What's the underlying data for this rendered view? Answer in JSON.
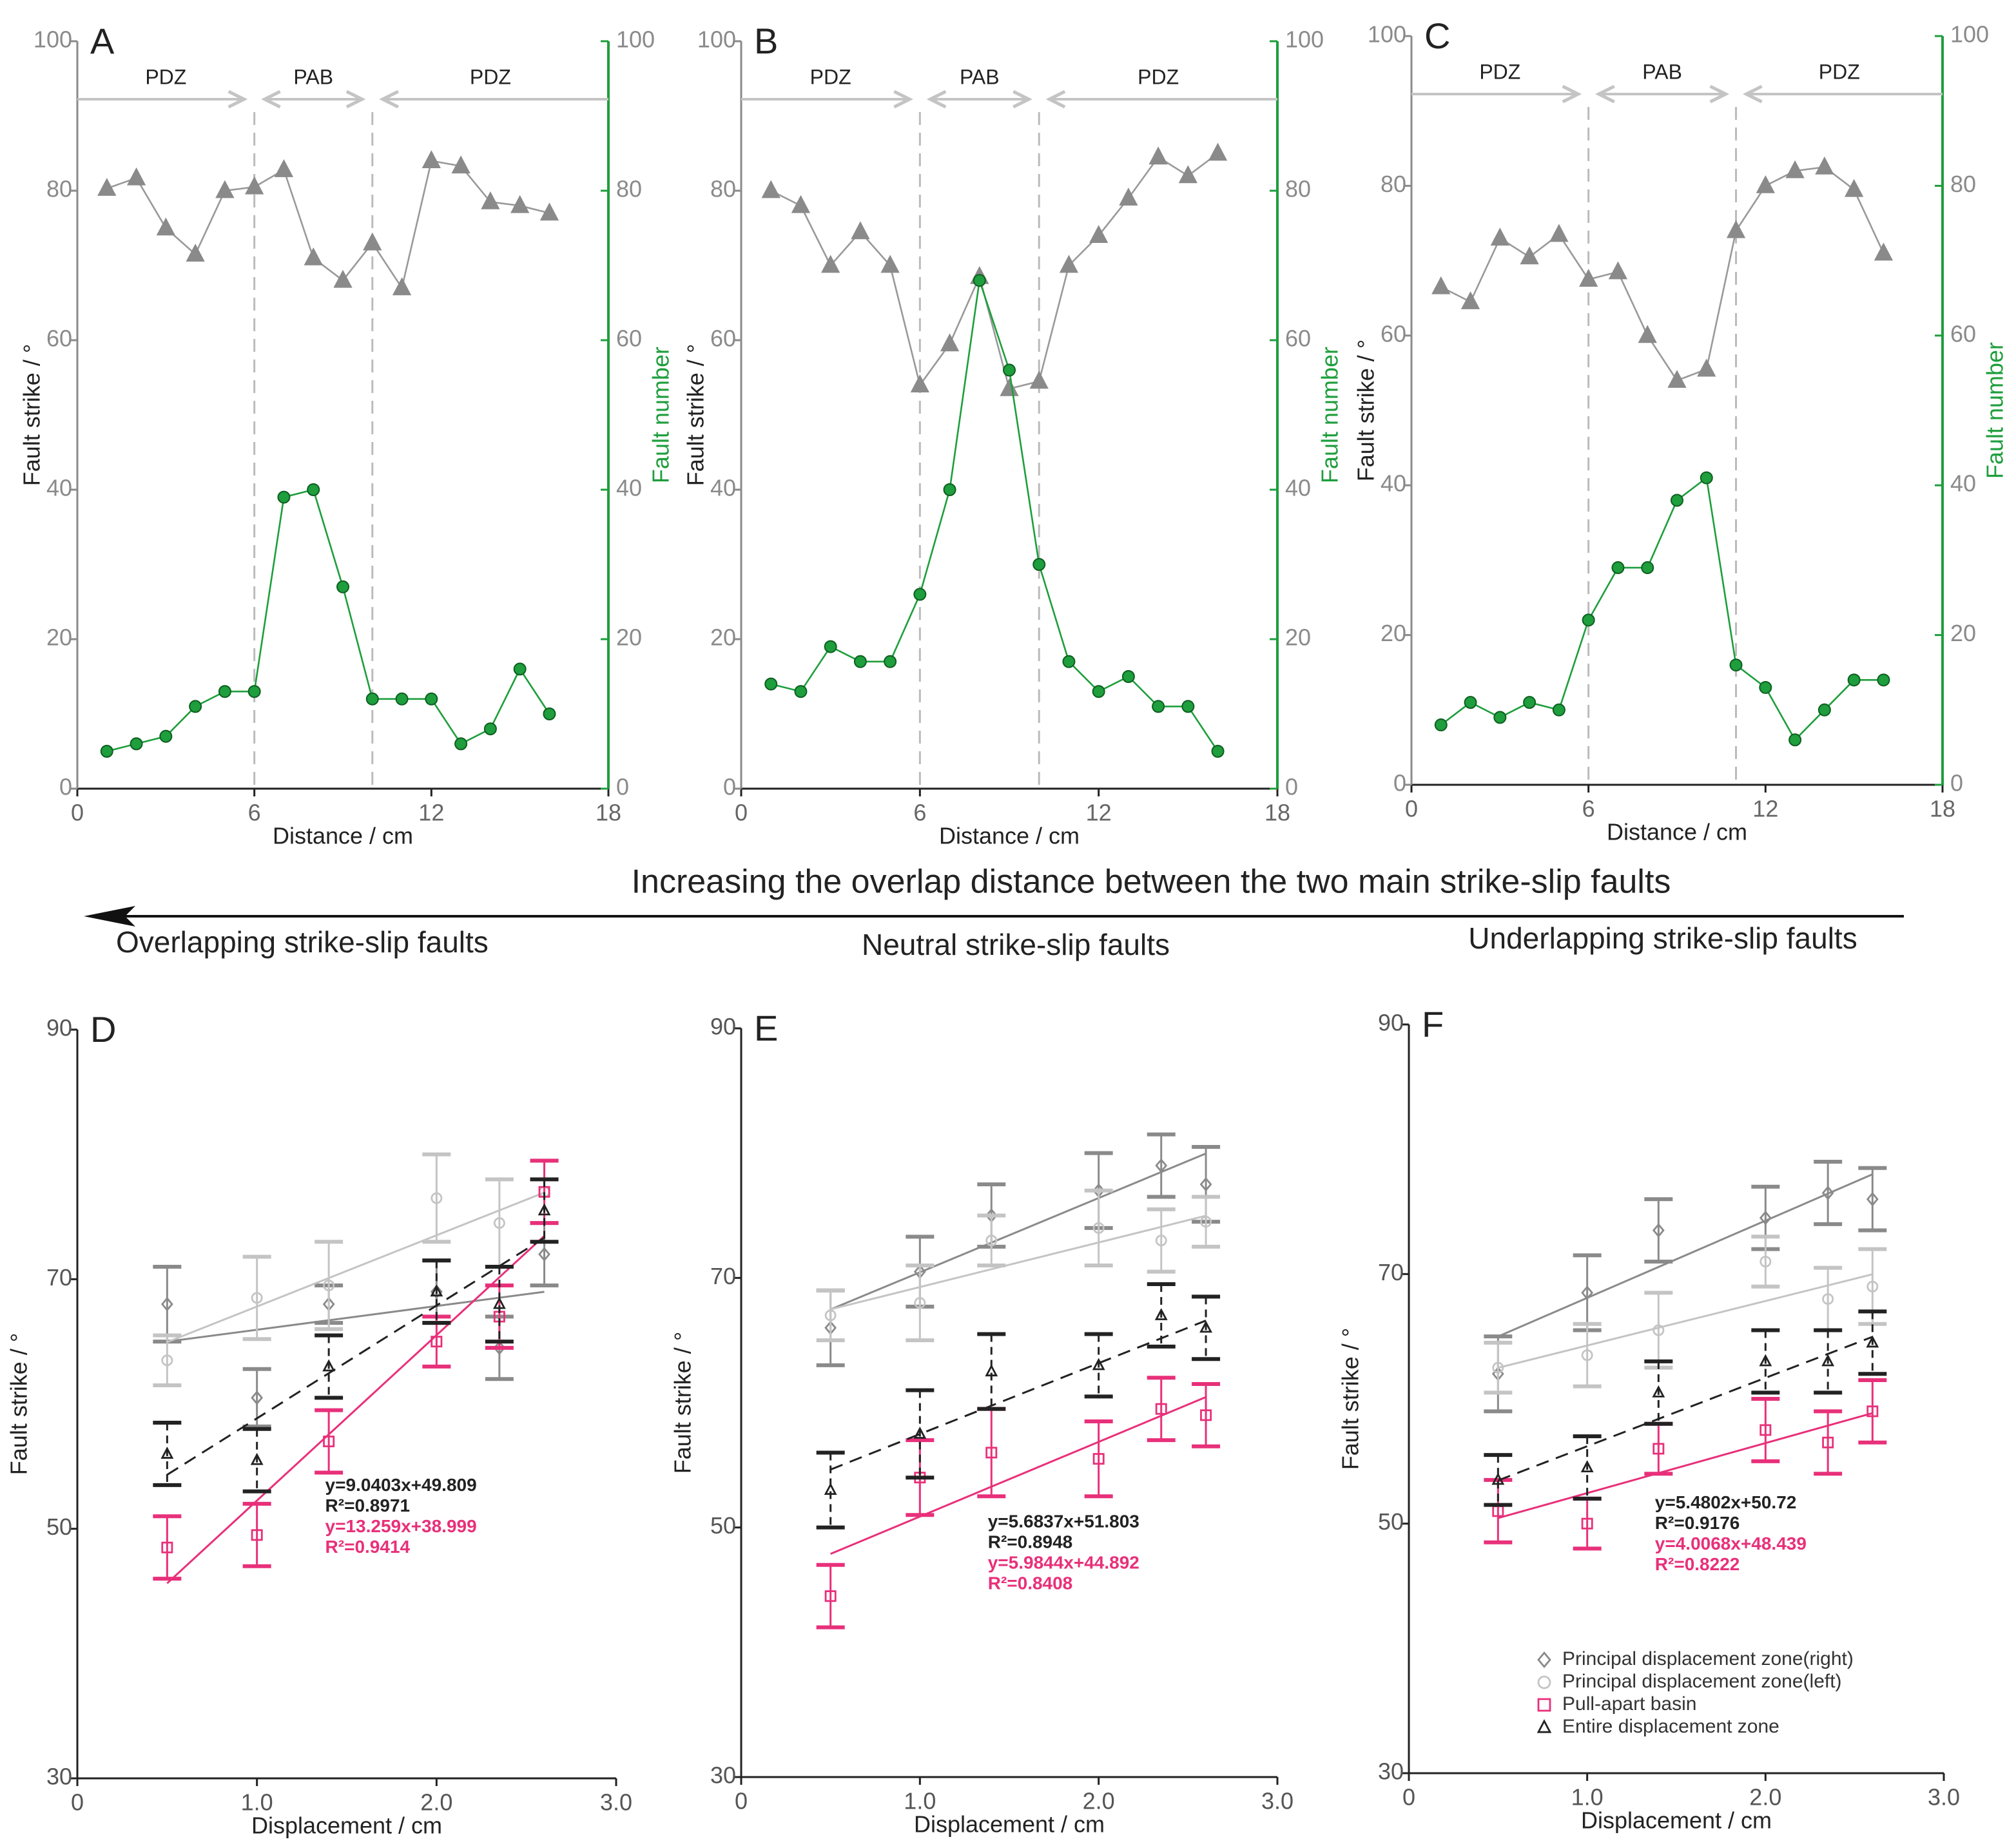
{
  "banner": {
    "title": "Increasing the overlap distance between the two main strike-slip faults",
    "left": "Overlapping strike-slip faults",
    "center": "Neutral strike-slip faults",
    "right": "Underlapping strike-slip faults"
  },
  "chart_data": [
    {
      "type": "line",
      "panel_label": "A",
      "xlabel": "Distance / cm",
      "ylabel": "Fault strike / °",
      "y2label": "Fault number",
      "x": [
        1,
        2,
        3,
        4,
        5,
        6,
        7,
        8,
        9,
        10,
        11,
        12,
        13,
        14,
        15,
        16
      ],
      "xlim": [
        0,
        18
      ],
      "xticks": [
        0,
        6,
        12,
        18
      ],
      "ylim": [
        0,
        100
      ],
      "yticks": [
        0,
        20,
        40,
        60,
        80,
        100
      ],
      "y2lim": [
        0,
        100
      ],
      "y2ticks": [
        0,
        20,
        40,
        60,
        80,
        100
      ],
      "boundaries": [
        6,
        10
      ],
      "zones": [
        "PDZ",
        "PAB",
        "PDZ"
      ],
      "series": [
        {
          "color": "#8a8a8a",
          "marker": "triangle",
          "values": [
            80.3,
            81.7,
            75,
            71.5,
            80,
            80.5,
            82.8,
            71,
            68,
            73,
            67,
            84,
            83.3,
            78.5,
            78,
            77
          ]
        },
        {
          "color": "#1e9e3c",
          "marker": "circle",
          "axis": "y2",
          "values": [
            5,
            6,
            7,
            11,
            13,
            13,
            39,
            40,
            27,
            12,
            12,
            12,
            6,
            8,
            16,
            10
          ]
        }
      ]
    },
    {
      "type": "line",
      "panel_label": "B",
      "xlabel": "Distance / cm",
      "ylabel": "Fault strike / °",
      "y2label": "Fault number",
      "x": [
        1,
        2,
        3,
        4,
        5,
        6,
        7,
        8,
        9,
        10,
        11,
        12,
        13,
        14,
        15,
        16
      ],
      "xlim": [
        0,
        18
      ],
      "xticks": [
        0,
        6,
        12,
        18
      ],
      "ylim": [
        0,
        100
      ],
      "yticks": [
        0,
        20,
        40,
        60,
        80,
        100
      ],
      "y2lim": [
        0,
        100
      ],
      "y2ticks": [
        0,
        20,
        40,
        60,
        80,
        100
      ],
      "boundaries": [
        6,
        10
      ],
      "zones": [
        "PDZ",
        "PAB",
        "PDZ"
      ],
      "series": [
        {
          "color": "#8a8a8a",
          "marker": "triangle",
          "values": [
            80,
            78,
            70,
            74.5,
            70,
            54,
            59.5,
            68.5,
            53.5,
            54.5,
            70,
            74,
            79,
            84.5,
            82,
            85
          ]
        },
        {
          "color": "#1e9e3c",
          "marker": "circle",
          "axis": "y2",
          "values": [
            14,
            13,
            19,
            17,
            17,
            26,
            40,
            68,
            56,
            30,
            17,
            13,
            15,
            11,
            11,
            5
          ]
        }
      ]
    },
    {
      "type": "line",
      "panel_label": "C",
      "xlabel": "Distance / cm",
      "ylabel": "Fault strike / °",
      "y2label": "Fault number",
      "x": [
        1,
        2,
        3,
        4,
        5,
        6,
        7,
        8,
        9,
        10,
        11,
        12,
        13,
        14,
        15,
        16
      ],
      "xlim": [
        0,
        18
      ],
      "xticks": [
        0,
        6,
        12,
        18
      ],
      "ylim": [
        0,
        100
      ],
      "yticks": [
        0,
        20,
        40,
        60,
        80,
        100
      ],
      "y2lim": [
        0,
        100
      ],
      "y2ticks": [
        0,
        20,
        40,
        60,
        80,
        100
      ],
      "boundaries": [
        6,
        11
      ],
      "zones": [
        "PDZ",
        "PAB",
        "PDZ"
      ],
      "series": [
        {
          "color": "#8a8a8a",
          "marker": "triangle",
          "values": [
            66.5,
            64.5,
            73,
            70.5,
            73.5,
            67.5,
            68.5,
            60,
            54,
            55.5,
            74,
            80,
            82,
            82.5,
            79.5,
            71
          ]
        },
        {
          "color": "#1e9e3c",
          "marker": "circle",
          "axis": "y2",
          "values": [
            8,
            11,
            9,
            11,
            10,
            22,
            29,
            29,
            38,
            41,
            16,
            13,
            6,
            10,
            14,
            14
          ]
        }
      ]
    },
    {
      "type": "scatter",
      "panel_label": "D",
      "xlabel": "Displacement / cm",
      "ylabel": "Fault strike / °",
      "x": [
        0.5,
        1,
        1.4,
        2,
        2.35,
        2.6
      ],
      "xlim": [
        0,
        3
      ],
      "xticks": [
        0,
        {
          "value": 1,
          "label": "1.0"
        },
        {
          "value": 2,
          "label": "2.0"
        },
        {
          "value": 3,
          "label": "3.0"
        }
      ],
      "ylim": [
        30,
        90
      ],
      "yticks": [
        30,
        50,
        70,
        90
      ],
      "series": [
        {
          "color": "#8a8a8a",
          "marker": "diamond",
          "values": [
            68,
            60.5,
            68,
            69,
            64.5,
            72
          ],
          "errors": [
            3,
            2.3,
            1.5,
            2.5,
            2.5,
            2.5
          ],
          "fit": {
            "slope": 1.9,
            "intercept": 64.05
          }
        },
        {
          "color": "#c4c4c4",
          "marker": "circle",
          "values": [
            63.5,
            68.5,
            69.5,
            76.5,
            74.5,
            77
          ],
          "errors": [
            2,
            3.3,
            3.5,
            3.5,
            3.5,
            2.5
          ],
          "fit": {
            "slope": 5.71,
            "intercept": 62.1
          }
        },
        {
          "color": "#e8307a",
          "marker": "square",
          "values": [
            48.5,
            49.5,
            57,
            65,
            67,
            77
          ],
          "errors": [
            2.5,
            2.5,
            2.5,
            2,
            2.5,
            2.5
          ],
          "fit": {
            "slope": 13.259,
            "intercept": 38.999,
            "equation": "y=13.259x+38.999",
            "r2": "R²=0.9414"
          }
        },
        {
          "color": "#222222",
          "marker": "triangle",
          "dashed": true,
          "values": [
            56,
            55.5,
            63,
            69,
            68,
            75.5
          ],
          "errors": [
            2.5,
            2.5,
            2.5,
            2.5,
            3,
            2.5
          ],
          "fit": {
            "slope": 9.0403,
            "intercept": 49.809,
            "equation": "y=9.0403x+49.809",
            "r2": "R²=0.8971"
          }
        }
      ]
    },
    {
      "type": "scatter",
      "panel_label": "E",
      "xlabel": "Displacement / cm",
      "ylabel": "Fault strike / °",
      "x": [
        0.5,
        1,
        1.4,
        2,
        2.35,
        2.6
      ],
      "xlim": [
        0,
        3
      ],
      "xticks": [
        0,
        {
          "value": 1,
          "label": "1.0"
        },
        {
          "value": 2,
          "label": "2.0"
        },
        {
          "value": 3,
          "label": "3.0"
        }
      ],
      "ylim": [
        30,
        90
      ],
      "yticks": [
        30,
        50,
        70,
        90
      ],
      "series": [
        {
          "color": "#8a8a8a",
          "marker": "diamond",
          "values": [
            66,
            70.5,
            75,
            77,
            79,
            77.5
          ],
          "errors": [
            3,
            2.8,
            2.5,
            3,
            2.5,
            3
          ],
          "fit": {
            "slope": 5.95,
            "intercept": 64.5
          }
        },
        {
          "color": "#c4c4c4",
          "marker": "circle",
          "values": [
            67,
            68,
            73,
            74,
            73,
            74.5
          ],
          "errors": [
            2,
            3,
            2,
            3,
            2.5,
            2
          ],
          "fit": {
            "slope": 3.57,
            "intercept": 65.7
          }
        },
        {
          "color": "#e8307a",
          "marker": "square",
          "values": [
            44.5,
            54,
            56,
            55.5,
            59.5,
            59
          ],
          "errors": [
            2.5,
            3,
            3.5,
            3,
            2.5,
            2.5
          ],
          "fit": {
            "slope": 5.9844,
            "intercept": 44.892,
            "equation": "y=5.9844x+44.892",
            "r2": "R²=0.8408"
          }
        },
        {
          "color": "#222222",
          "marker": "triangle",
          "dashed": true,
          "values": [
            53,
            57.5,
            62.5,
            63,
            67,
            66
          ],
          "errors": [
            3,
            3.5,
            3,
            2.5,
            2.5,
            2.5
          ],
          "fit": {
            "slope": 5.6837,
            "intercept": 51.803,
            "equation": "y=5.6837x+51.803",
            "r2": "R²=0.8948"
          }
        }
      ]
    },
    {
      "type": "scatter",
      "panel_label": "F",
      "xlabel": "Displacement / cm",
      "ylabel": "Fault strike / °",
      "x": [
        0.5,
        1,
        1.4,
        2,
        2.35,
        2.6
      ],
      "xlim": [
        0,
        3
      ],
      "xticks": [
        0,
        {
          "value": 1,
          "label": "1.0"
        },
        {
          "value": 2,
          "label": "2.0"
        },
        {
          "value": 3,
          "label": "3.0"
        }
      ],
      "ylim": [
        30,
        90
      ],
      "yticks": [
        30,
        50,
        70,
        90
      ],
      "legend": "lower right",
      "series": [
        {
          "name": "Principal displacement zone(right)",
          "color": "#8a8a8a",
          "marker": "diamond",
          "values": [
            62,
            68.5,
            73.5,
            74.5,
            76.5,
            76
          ],
          "errors": [
            3,
            3,
            2.5,
            2.5,
            2.5,
            2.5
          ],
          "fit": {
            "slope": 6.19,
            "intercept": 61.9
          }
        },
        {
          "name": "Principal displacement zone(left)",
          "color": "#c4c4c4",
          "marker": "circle",
          "values": [
            62.5,
            63.5,
            65.5,
            71,
            68,
            69
          ],
          "errors": [
            2,
            2.5,
            3,
            2,
            2.5,
            3
          ],
          "fit": {
            "slope": 3.57,
            "intercept": 60.7
          }
        },
        {
          "name": "Pull-apart basin",
          "color": "#e8307a",
          "marker": "square",
          "values": [
            51,
            50,
            56,
            57.5,
            56.5,
            59
          ],
          "errors": [
            2.5,
            2,
            2,
            2.5,
            2.5,
            2.5
          ],
          "fit": {
            "slope": 4.0068,
            "intercept": 48.439,
            "equation": "y=4.0068x+48.439",
            "r2": "R²=0.8222"
          }
        },
        {
          "name": "Entire displacement zone",
          "color": "#222222",
          "marker": "triangle",
          "dashed": true,
          "values": [
            53.5,
            54.5,
            60.5,
            63,
            63,
            64.5
          ],
          "errors": [
            2,
            2.5,
            2.5,
            2.5,
            2.5,
            2.5
          ],
          "fit": {
            "slope": 5.4802,
            "intercept": 50.72,
            "equation": "y=5.4802x+50.72",
            "r2": "R²=0.9176"
          }
        }
      ]
    }
  ]
}
